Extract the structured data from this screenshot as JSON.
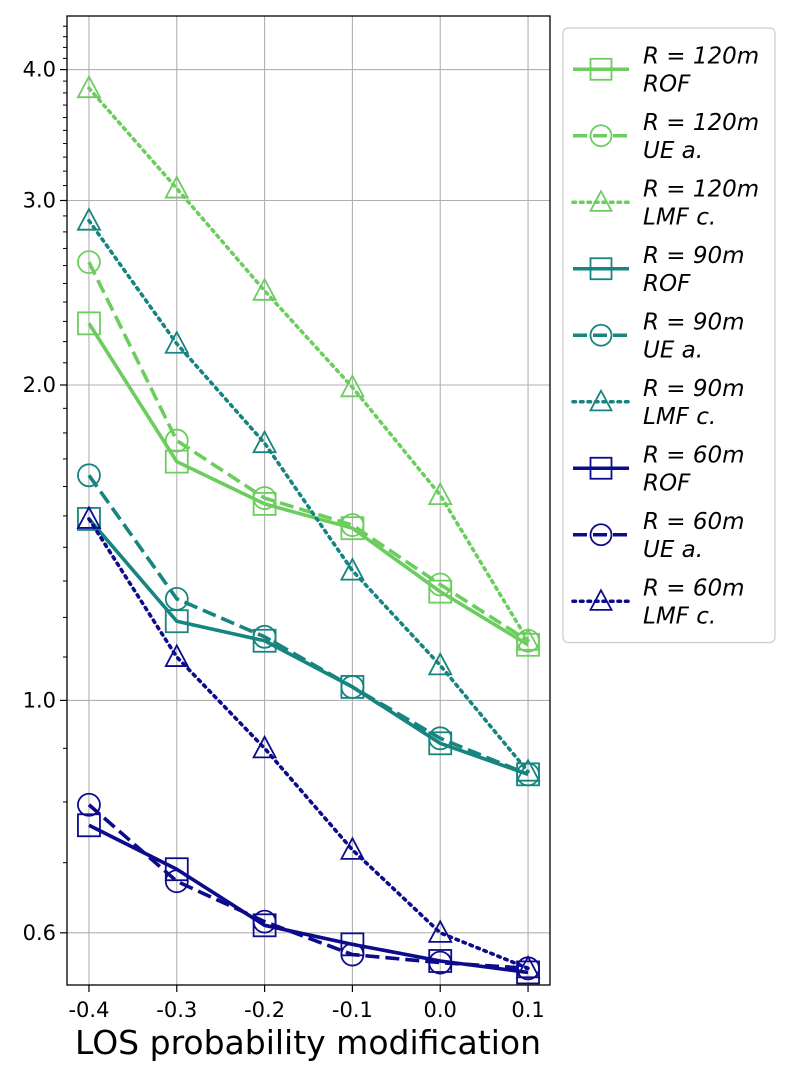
{
  "chart_data": {
    "type": "line",
    "title": "",
    "xlabel": "LOS probability modification",
    "ylabel": "",
    "x": [
      -0.4,
      -0.3,
      -0.2,
      -0.1,
      0.0,
      0.1
    ],
    "xlim": [
      -0.425,
      0.125
    ],
    "ylim": [
      0.535,
      4.5
    ],
    "yscale": "log",
    "xticks": [
      "-0.4",
      "-0.3",
      "-0.2",
      "-0.1",
      "0.0",
      "0.1"
    ],
    "yticks": [
      {
        "value": 0.6,
        "label": "0.6"
      },
      {
        "value": 1.0,
        "label": "1.0"
      },
      {
        "value": 2.0,
        "label": "2.0"
      },
      {
        "value": 3.0,
        "label": "3.0"
      },
      {
        "value": 4.0,
        "label": "4.0"
      }
    ],
    "grid": true,
    "legend_position": "outside-right",
    "series": [
      {
        "name": "R = 120m ROF",
        "line1": "R = 120m",
        "line2": "ROF",
        "color": "#6ccd5f",
        "linestyle": "solid",
        "marker": "square",
        "values": [
          2.29,
          1.69,
          1.54,
          1.46,
          1.27,
          1.13
        ]
      },
      {
        "name": "R = 120m UE a.",
        "line1": "R = 120m",
        "line2": "UE a.",
        "color": "#6ccd5f",
        "linestyle": "dashed",
        "marker": "circle",
        "values": [
          2.62,
          1.77,
          1.56,
          1.47,
          1.29,
          1.14
        ]
      },
      {
        "name": "R = 120m LMF c.",
        "line1": "R = 120m",
        "line2": "LMF c.",
        "color": "#6ccd5f",
        "linestyle": "dotted",
        "marker": "triangle",
        "values": [
          3.84,
          3.08,
          2.46,
          1.99,
          1.57,
          1.14
        ]
      },
      {
        "name": "R = 90m ROF",
        "line1": "R = 90m",
        "line2": "ROF",
        "color": "#16847f",
        "linestyle": "solid",
        "marker": "square",
        "values": [
          1.49,
          1.19,
          1.14,
          1.03,
          0.91,
          0.85
        ]
      },
      {
        "name": "R = 90m UE a.",
        "line1": "R = 90m",
        "line2": "UE a.",
        "color": "#16847f",
        "linestyle": "dashed",
        "marker": "circle",
        "values": [
          1.64,
          1.25,
          1.15,
          1.03,
          0.92,
          0.85
        ]
      },
      {
        "name": "R = 90m LMF c.",
        "line1": "R = 90m",
        "line2": "LMF c.",
        "color": "#16847f",
        "linestyle": "dotted",
        "marker": "triangle",
        "values": [
          2.87,
          2.19,
          1.76,
          1.33,
          1.08,
          0.855
        ]
      },
      {
        "name": "R = 60m ROF",
        "line1": "R = 60m",
        "line2": "ROF",
        "color": "#0c0b8c",
        "linestyle": "solid",
        "marker": "square",
        "values": [
          0.76,
          0.69,
          0.61,
          0.585,
          0.564,
          0.55
        ]
      },
      {
        "name": "R = 60m UE a.",
        "line1": "R = 60m",
        "line2": "UE a.",
        "color": "#0c0b8c",
        "linestyle": "dashed",
        "marker": "circle",
        "values": [
          0.795,
          0.672,
          0.615,
          0.572,
          0.562,
          0.555
        ]
      },
      {
        "name": "R = 60m LMF c.",
        "line1": "R = 60m",
        "line2": "LMF c.",
        "color": "#0c0b8c",
        "linestyle": "dotted",
        "marker": "triangle",
        "values": [
          1.49,
          1.1,
          0.9,
          0.72,
          0.6,
          0.555
        ]
      }
    ]
  }
}
